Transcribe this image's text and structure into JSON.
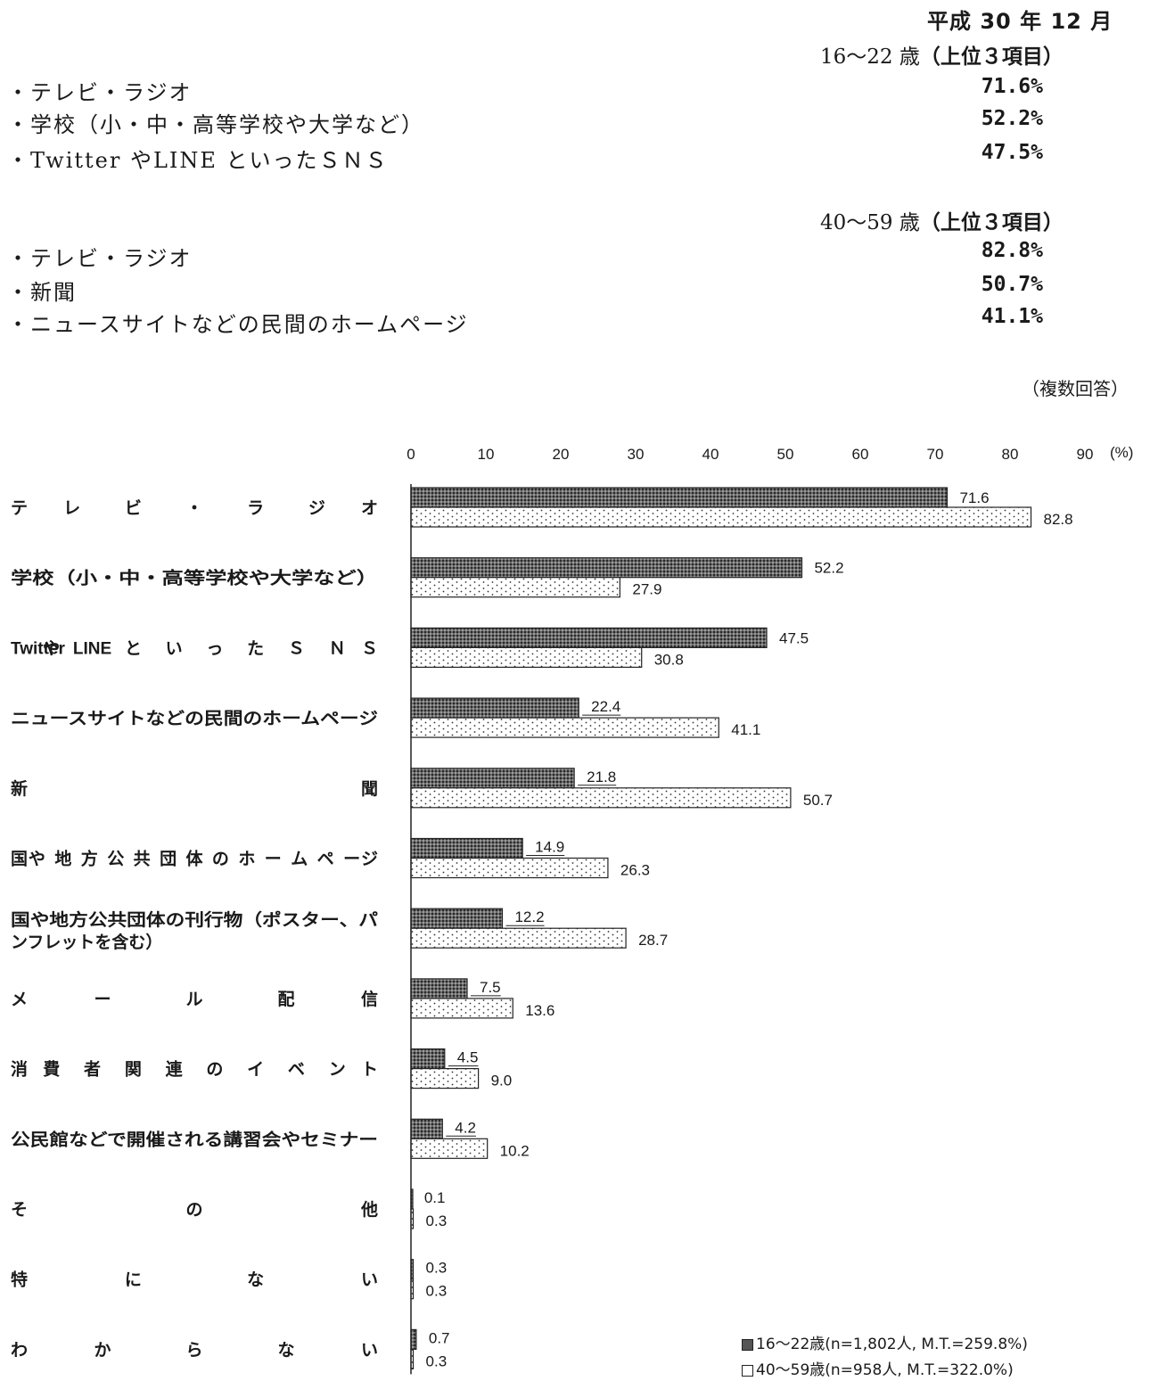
{
  "header": {
    "date": "平成 30 年 12 月",
    "group1": {
      "title": "16～22 歳",
      "title_suffix": "（上位３項目）",
      "items": [
        {
          "label": "・テレビ・ラジオ",
          "pct": "71.6%"
        },
        {
          "label": "・学校（小・中・高等学校や大学など）",
          "pct": "52.2%"
        },
        {
          "label": "・Twitter やLINE といったＳＮＳ",
          "pct": "47.5%"
        }
      ]
    },
    "group2": {
      "title": "40～59 歳",
      "title_suffix": "（上位３項目）",
      "items": [
        {
          "label": "・テレビ・ラジオ",
          "pct": "82.8%"
        },
        {
          "label": "・新聞",
          "pct": "50.7%"
        },
        {
          "label": "・ニュースサイトなどの民間のホームページ",
          "pct": "41.1%"
        }
      ]
    },
    "note": "（複数回答）"
  },
  "chart_data": {
    "type": "bar",
    "orientation": "horizontal",
    "x_unit": "(%)",
    "xlim": [
      0,
      90
    ],
    "xticks": [
      0,
      10,
      20,
      30,
      40,
      50,
      60,
      70,
      80,
      90
    ],
    "categories": [
      [
        "テ",
        "レ",
        "ビ",
        "・",
        "ラ",
        "ジ",
        "オ"
      ],
      [
        "学校（小・中・高等学校や大学など）"
      ],
      [
        "Twitter",
        "や",
        "LINE",
        "と",
        "い",
        "っ",
        "た",
        "Ｓ",
        "Ｎ",
        "Ｓ"
      ],
      [
        "ニュースサイトなどの民間のホームページ"
      ],
      [
        "新",
        "聞"
      ],
      [
        "国",
        "や",
        "地",
        "方",
        "公",
        "共",
        "団",
        "体",
        "の",
        "ホ",
        "ー",
        "ム",
        "ペ",
        "ー",
        "ジ"
      ],
      [
        "国や地方公共団体の刊行物（ポスター、パ",
        "ンフレットを含む）"
      ],
      [
        "メ",
        "ー",
        "ル",
        "配",
        "信"
      ],
      [
        "消",
        "費",
        "者",
        "関",
        "連",
        "の",
        "イ",
        "ベ",
        "ン",
        "ト"
      ],
      [
        "公民館などで開催される講習会やセミナー"
      ],
      [
        "そ",
        "の",
        "他"
      ],
      [
        "特",
        "に",
        "な",
        "い"
      ],
      [
        "わ",
        "か",
        "ら",
        "な",
        "い"
      ]
    ],
    "series": [
      {
        "name": "16～22歳(n=1,802人, M.T.=259.8%)",
        "pattern": "dense",
        "values": [
          71.6,
          52.2,
          47.5,
          22.4,
          21.8,
          14.9,
          12.2,
          7.5,
          4.5,
          4.2,
          0.1,
          0.3,
          0.7
        ],
        "labels": [
          "71.6",
          "52.2",
          "47.5",
          "22.4",
          "21.8",
          "14.9",
          "12.2",
          "7.5",
          "4.5",
          "4.2",
          "0.1",
          "0.3",
          "0.7"
        ]
      },
      {
        "name": "40～59歳(n=958人, M.T.=322.0%)",
        "pattern": "dotted",
        "values": [
          82.8,
          27.9,
          30.8,
          41.1,
          50.7,
          26.3,
          28.7,
          13.6,
          9.0,
          10.2,
          0.3,
          0.3,
          0.3
        ],
        "labels": [
          "82.8",
          "27.9",
          "30.8",
          "41.1",
          "50.7",
          "26.3",
          "28.7",
          "13.6",
          "9.0",
          "10.2",
          "0.3",
          "0.3",
          "0.3"
        ]
      }
    ],
    "legend_position": "bottom-right",
    "colors": {
      "ink": "#1a1a1a",
      "bar_dense_fill": "#5a5a5a",
      "bar_light_fill": "#ffffff"
    }
  }
}
